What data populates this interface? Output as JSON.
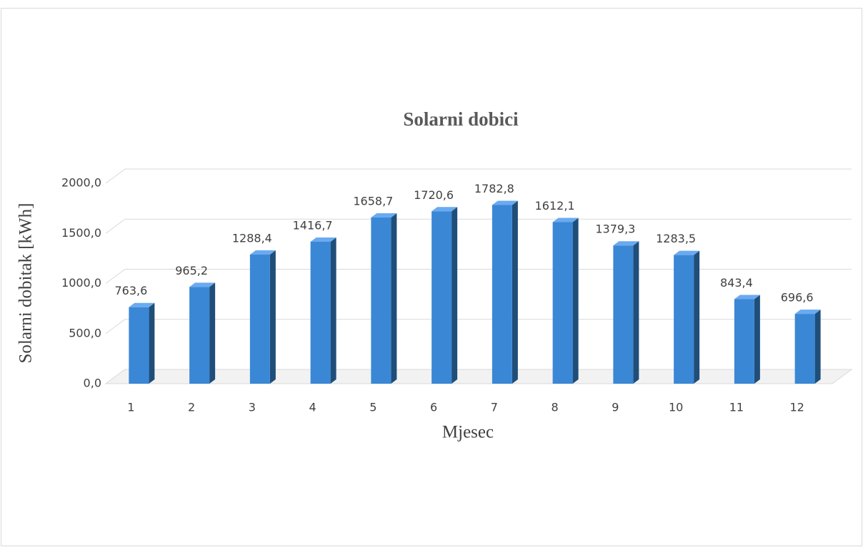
{
  "chart_data": {
    "type": "bar",
    "title": "Solarni dobici",
    "x_label": "Mjesec",
    "y_label": "Solarni dobitak [kWh]",
    "categories": [
      "1",
      "2",
      "3",
      "4",
      "5",
      "6",
      "7",
      "8",
      "9",
      "10",
      "11",
      "12"
    ],
    "values": [
      763.6,
      965.2,
      1288.4,
      1416.7,
      1658.7,
      1720.6,
      1782.8,
      1612.1,
      1379.3,
      1283.5,
      843.4,
      696.6
    ],
    "value_labels": [
      "763,6",
      "965,2",
      "1288,4",
      "1416,7",
      "1658,7",
      "1720,6",
      "1782,8",
      "1612,1",
      "1379,3",
      "1283,5",
      "843,4",
      "696,6"
    ],
    "color": "#3a87d6",
    "ylim": [
      0,
      2000
    ],
    "yticks": [
      {
        "value": 0,
        "label": "0,0"
      },
      {
        "value": 500,
        "label": "500,0"
      },
      {
        "value": 1000,
        "label": "1000,0"
      },
      {
        "value": 1500,
        "label": "1500,0"
      },
      {
        "value": 2000,
        "label": "2000,0"
      }
    ],
    "grid": true
  }
}
